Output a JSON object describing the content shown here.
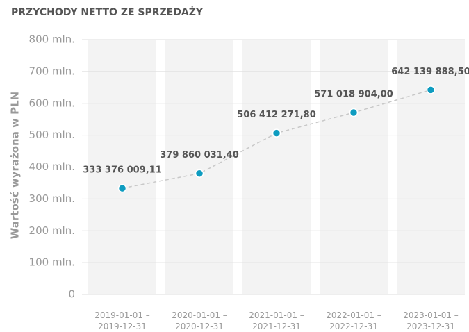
{
  "chart_data": {
    "type": "line",
    "title": "PRZYCHODY NETTO ZE SPRZEDAŻY",
    "ylabel": "Wartość wyrażona w PLN",
    "categories": [
      "2019-01-01 –\n2019-12-31",
      "2020-01-01 –\n2020-12-31",
      "2021-01-01 –\n2021-12-31",
      "2022-01-01 –\n2022-12-31",
      "2023-01-01 –\n2023-12-31"
    ],
    "series": [
      {
        "name": "Przychody netto ze sprzedaży",
        "color": "#0e9cc0",
        "values": [
          333376009.11,
          379860031.4,
          506412271.8,
          571018904.0,
          642139888.5
        ],
        "value_labels": [
          "333 376 009,11",
          "379 860 031,40",
          "506 412 271,80",
          "571 018 904,00",
          "642 139 888,50"
        ]
      }
    ],
    "ylim": [
      0,
      800000000
    ],
    "yticks": [
      0,
      {
        "value": 100000000,
        "label": "100 mln."
      },
      {
        "value": 200000000,
        "label": "200 mln."
      },
      {
        "value": 300000000,
        "label": "300 mln."
      },
      {
        "value": 400000000,
        "label": "400 mln."
      },
      {
        "value": 500000000,
        "label": "500 mln."
      },
      {
        "value": 600000000,
        "label": "600 mln."
      },
      {
        "value": 700000000,
        "label": "700 mln."
      },
      {
        "value": 800000000,
        "label": "800 mln."
      }
    ],
    "grid": true
  }
}
